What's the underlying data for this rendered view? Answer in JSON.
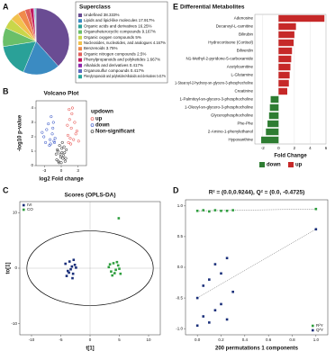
{
  "chart_data": [
    {
      "type": "pie",
      "panel": "A",
      "legend_title": "Superclass",
      "categories": [
        "Undefined",
        "Lipids and lipid-like molecules",
        "Organic acids and derivatives",
        "Organoheterocyclic compounds",
        "Organic oxygen compounds",
        "Nucleosides, nucleotides, and analogues",
        "Benzenoids",
        "Organic nitrogen compounds",
        "Phenylpropanoids and polyketides",
        "Alkaloids and derivatives",
        "Organosulfur compounds",
        "Phenylpropanoids and polyketides/Alkaloids and derivatives"
      ],
      "values": [
        38.333,
        17.917,
        16.25,
        9.167,
        5,
        4.167,
        3.75,
        2.5,
        1.667,
        0.417,
        0.417,
        0.417
      ],
      "value_labels": [
        "38.333%",
        "17.917%",
        "16.25%",
        "9.167%",
        "5%",
        "4.167%",
        "3.75%",
        "2.5%",
        "1.667%",
        "0.417%",
        "0.417%",
        "0.417%"
      ],
      "colors": [
        "#6a4c93",
        "#3b8bc2",
        "#2aa198",
        "#6abf69",
        "#c9d64a",
        "#f2c14e",
        "#f08a4b",
        "#e0605b",
        "#c2185b",
        "#8e24aa",
        "#5c6bc0",
        "#26a69a"
      ]
    },
    {
      "type": "barh",
      "panel": "E",
      "title": "Differential Metabolites",
      "xlabel": "Fold Change",
      "categories": [
        "Adenosine",
        "Decanoyl-L-carnitine",
        "Bilirubin",
        "Hydrocortisone (Cortisol)",
        "Biliverdin",
        "N1-Methyl-2-pyridone-5-carboxamide",
        "Acetylcarnitine",
        "L-Glutamine",
        "1-Stearoyl-2-hydroxy-sn-glycero-3-phosphocholine",
        "Creatinine",
        "1-Palmitoyl-sn-glycero-3-phosphocholine",
        "1-Oleoyl-sn-glycero-3-phosphocholine",
        "Glycerophosphocholine",
        "Phe-Phe",
        "2-Amino-1-phenylethanol",
        "Hypoxanthine"
      ],
      "series": [
        {
          "name": "down",
          "color": "#2e7d32",
          "values": [
            null,
            null,
            null,
            null,
            null,
            null,
            null,
            null,
            null,
            null,
            -1.0,
            -1.1,
            -1.2,
            -1.4,
            -1.6,
            -2.2
          ]
        },
        {
          "name": "up",
          "color": "#c62828",
          "values": [
            5.8,
            2.2,
            2.0,
            1.9,
            1.7,
            1.6,
            1.5,
            1.4,
            1.3,
            1.1,
            null,
            null,
            null,
            null,
            null,
            null
          ]
        }
      ],
      "xlim": [
        -3,
        6
      ],
      "xticks": [
        -2,
        0,
        2,
        4,
        6
      ]
    },
    {
      "type": "scatter",
      "panel": "B",
      "title": "Volcano Plot",
      "xlabel": "log2 Fold change",
      "ylabel": "-log10 p-value",
      "legend_title": "updown",
      "legend": "right",
      "marker": "open-circle",
      "series": [
        {
          "name": "up",
          "color": "#e53935",
          "x": [
            1.2,
            1.5,
            1.8,
            2.0,
            1.3,
            2.4,
            1.6,
            2.8,
            1.1,
            2.2,
            1.9,
            3.1,
            1.4,
            2.6,
            1.7
          ],
          "values": [
            2.1,
            3.2,
            2.6,
            4.0,
            1.6,
            3.0,
            1.9,
            2.4,
            2.8,
            1.8,
            3.6,
            1.7,
            3.9,
            2.2,
            1.5
          ]
        },
        {
          "name": "down",
          "color": "#1e3fbf",
          "x": [
            -1.2,
            -1.6,
            -2.0,
            -2.6,
            -1.4,
            -1.9,
            -3.1,
            -2.3,
            -1.1,
            -1.8,
            -2.8,
            -1.5,
            -2.1,
            -3.4,
            -1.3
          ],
          "values": [
            1.6,
            2.2,
            1.8,
            2.5,
            3.0,
            1.5,
            2.0,
            2.9,
            1.9,
            3.4,
            1.6,
            2.6,
            1.4,
            2.3,
            1.7
          ]
        },
        {
          "name": "Non-significant",
          "color": "#111111",
          "x": [
            -0.5,
            -0.2,
            0.1,
            0.3,
            0.6,
            -0.8,
            0.9,
            0.0,
            -0.3,
            0.4,
            -0.6,
            0.2,
            0.7,
            -0.1,
            0.5,
            -0.9,
            0.8,
            -0.4,
            0.1,
            -0.7
          ],
          "values": [
            0.3,
            0.8,
            1.2,
            0.5,
            0.9,
            0.4,
            1.1,
            0.2,
            1.4,
            0.7,
            1.0,
            1.6,
            0.3,
            0.6,
            1.3,
            0.8,
            0.5,
            0.2,
            0.9,
            1.1
          ]
        }
      ],
      "xlim": [
        -4.5,
        4.5
      ],
      "xticks": [
        -3,
        0,
        3
      ],
      "ylim": [
        0,
        4.5
      ],
      "yticks": [
        0,
        1,
        2,
        3,
        4
      ]
    },
    {
      "type": "scatter",
      "panel": "C",
      "title": "Scores (OPLS-DA)",
      "xlabel": "t[1]",
      "ylabel": "to[1]",
      "legend": "top-left",
      "marker": "square",
      "ellipse": true,
      "series": [
        {
          "name": "IVI",
          "color": "#1a2f7a",
          "x": [
            -4.2,
            -3.8,
            -3.5,
            -3.1,
            -2.9,
            -2.6,
            -3.3,
            -4.0,
            -2.4,
            -3.6,
            -2.8,
            -3.0
          ],
          "values": [
            0.8,
            -0.5,
            1.2,
            0.3,
            -1.0,
            0.6,
            -0.2,
            -1.4,
            0.1,
            -0.8,
            1.5,
            -1.8
          ]
        },
        {
          "name": "CO",
          "color": "#2e9e3e",
          "x": [
            3.2,
            3.6,
            4.0,
            4.4,
            4.8,
            5.2,
            3.8,
            4.6,
            5.0,
            3.4,
            4.2,
            4.9
          ],
          "values": [
            0.2,
            -0.6,
            0.9,
            -0.3,
            0.5,
            -1.0,
            -1.3,
            1.1,
            -0.1,
            0.7,
            -0.9,
            9.0
          ]
        }
      ],
      "xlim": [
        -12,
        12
      ],
      "xticks": [
        -10,
        -5,
        0,
        5,
        10
      ],
      "ylim": [
        -12,
        12
      ],
      "yticks": [
        -10,
        0,
        10
      ]
    },
    {
      "type": "scatter",
      "panel": "D",
      "title": "R² = (0.0,0.9244), Q² = (0.0, -0.4725)",
      "xlabel": "200 permutations 1 components",
      "legend": "bottom-right",
      "marker": "square",
      "fit_lines": true,
      "series": [
        {
          "name": "R²Y",
          "color": "#2e9e3e",
          "x": [
            0,
            0.05,
            0.1,
            0.15,
            0.2,
            0.25,
            0.3,
            1.0
          ],
          "values": [
            0.92,
            0.93,
            0.91,
            0.93,
            0.92,
            0.92,
            0.93,
            0.95
          ]
        },
        {
          "name": "Q²Y",
          "color": "#1a2f7a",
          "x": [
            0,
            0,
            0.05,
            0.05,
            0.1,
            0.1,
            0.15,
            0.15,
            0.2,
            0.2,
            0.25,
            0.25,
            0.3,
            1.0
          ],
          "values": [
            -0.5,
            -0.95,
            -0.3,
            -0.8,
            -0.2,
            -0.9,
            0.05,
            -0.7,
            -0.1,
            -0.6,
            0.15,
            -0.85,
            -0.4,
            0.62
          ]
        }
      ],
      "xlim": [
        -0.1,
        1.1
      ],
      "xticks": [
        {
          "value": 0,
          "label": "0.0"
        },
        {
          "value": 0.2,
          "label": "0.2"
        },
        {
          "value": 0.4,
          "label": "0.4"
        },
        {
          "value": 0.6,
          "label": "0.6"
        },
        {
          "value": 0.8,
          "label": "0.8"
        },
        {
          "value": 1,
          "label": "1.0"
        }
      ],
      "ylim": [
        -1.1,
        1.1
      ],
      "yticks": [
        {
          "value": -1,
          "label": "-1.0"
        },
        {
          "value": -0.5,
          "label": "-0.5"
        },
        {
          "value": 0,
          "label": "0.0"
        },
        {
          "value": 0.5,
          "label": "0.5"
        },
        {
          "value": 1,
          "label": "1.0"
        }
      ]
    }
  ]
}
